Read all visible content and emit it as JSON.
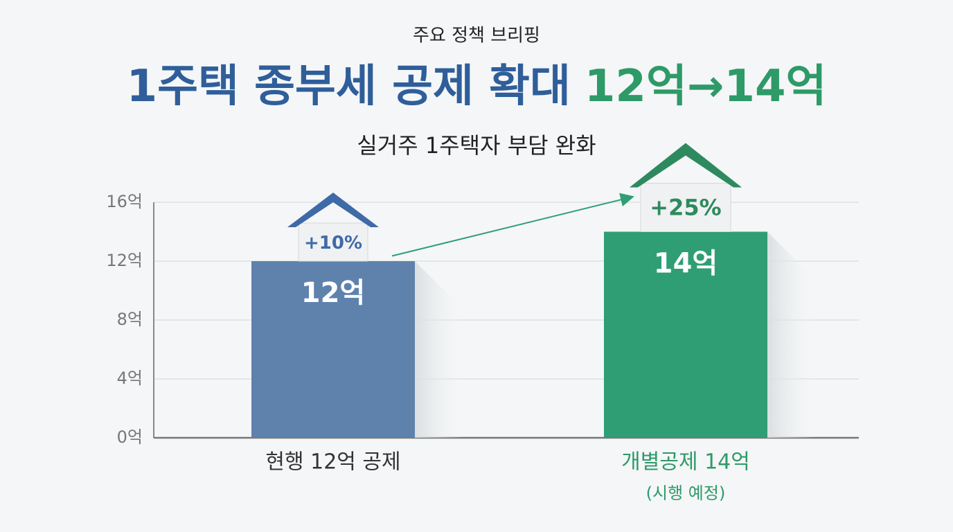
{
  "chart_data": {
    "type": "bar",
    "supertitle": "주요 정책 브리핑",
    "title": "1주택 종부세 공제 확대",
    "title_highlight": "12억→14억",
    "subtitle": "실거주 1주택자 부담 완화",
    "categories": [
      "현행 12억 공제",
      "개별공제 14억"
    ],
    "category_notes": [
      null,
      "(시행 예정)"
    ],
    "values": [
      12,
      14
    ],
    "value_labels": [
      "12억",
      "14억"
    ],
    "annotations": [
      "+10%",
      "+25%"
    ],
    "colors": [
      "#5f82ad",
      "#2f9e74"
    ],
    "ylim": [
      0,
      16
    ],
    "yticks": [
      {
        "value": 0,
        "label": "0억"
      },
      {
        "value": 4,
        "label": "4억"
      },
      {
        "value": 8,
        "label": "8억"
      },
      {
        "value": 12,
        "label": "12억"
      },
      {
        "value": 16,
        "label": "16억"
      }
    ],
    "grid": true
  }
}
